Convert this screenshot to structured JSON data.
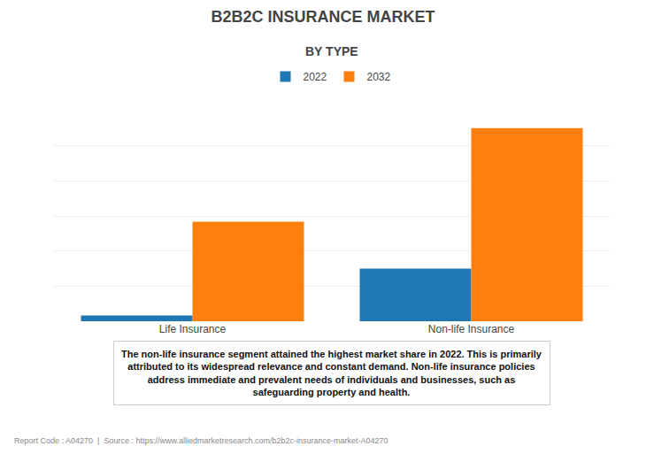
{
  "chart_data": {
    "type": "bar",
    "title": "B2B2C INSURANCE MARKET",
    "subtitle": "BY TYPE",
    "categories": [
      "Life Insurance",
      "Non-life Insurance"
    ],
    "series": [
      {
        "name": "2022",
        "values": [
          0.5,
          4.5
        ]
      },
      {
        "name": "2032",
        "values": [
          8.5,
          16.5
        ]
      }
    ],
    "ylim": [
      0,
      18
    ],
    "yticks": [
      0,
      3,
      6,
      9,
      12,
      15,
      18
    ],
    "grid": true,
    "tick_labels": "x",
    "legend": "upper center",
    "annotations": [
      "The non-life insurance segment attained the highest market share in 2022. This is primarily\nattributed to its widespread relevance and constant demand. Non-life insurance policies\naddress immediate and prevalent needs of individuals and businesses, such as\nsafeguarding property and health.",
      "Report Code : A04270  |  Source : https://www.alliedmarketresearch.com/b2b2c-insurance-market-A04270"
    ]
  }
}
